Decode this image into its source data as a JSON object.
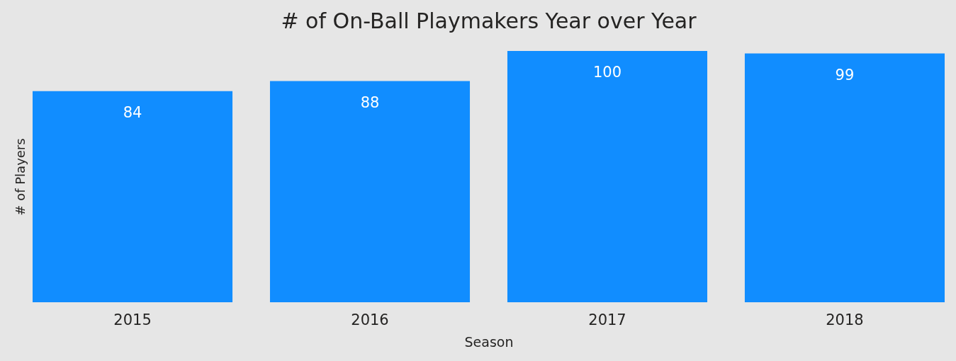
{
  "chart_data": {
    "type": "bar",
    "title": "# of On-Ball Playmakers Year over Year",
    "xlabel": "Season",
    "ylabel": "# of Players",
    "categories": [
      "2015",
      "2016",
      "2017",
      "2018"
    ],
    "values": [
      84,
      88,
      100,
      99
    ],
    "color": "#118dff",
    "data_labels": true
  }
}
